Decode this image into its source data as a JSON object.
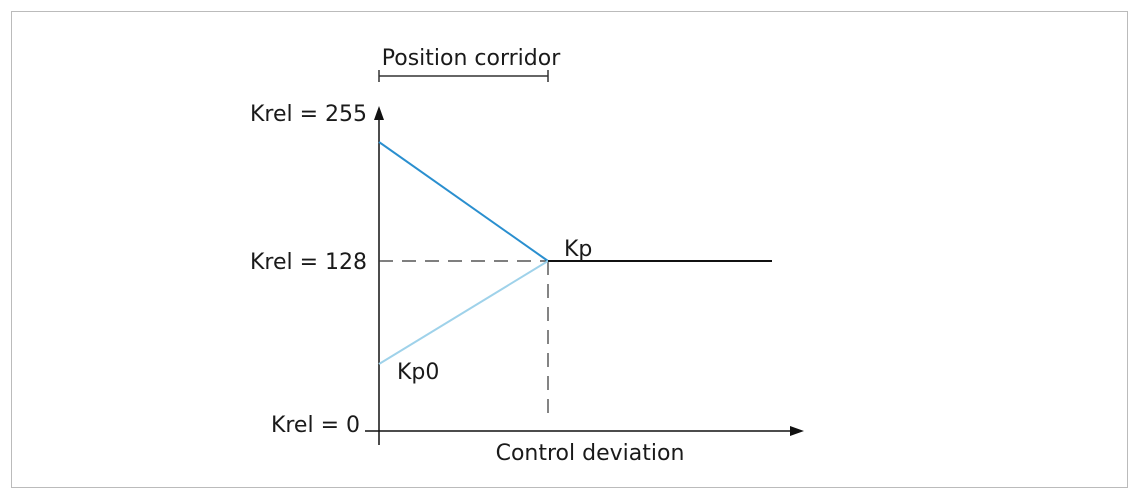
{
  "labels": {
    "corridor": "Position corridor",
    "krel_max": "Krel = 255",
    "krel_mid": "Krel = 128",
    "krel_min": "Krel = 0",
    "kp": "Kp",
    "kp0": "Kp0",
    "x_axis": "Control deviation"
  }
}
